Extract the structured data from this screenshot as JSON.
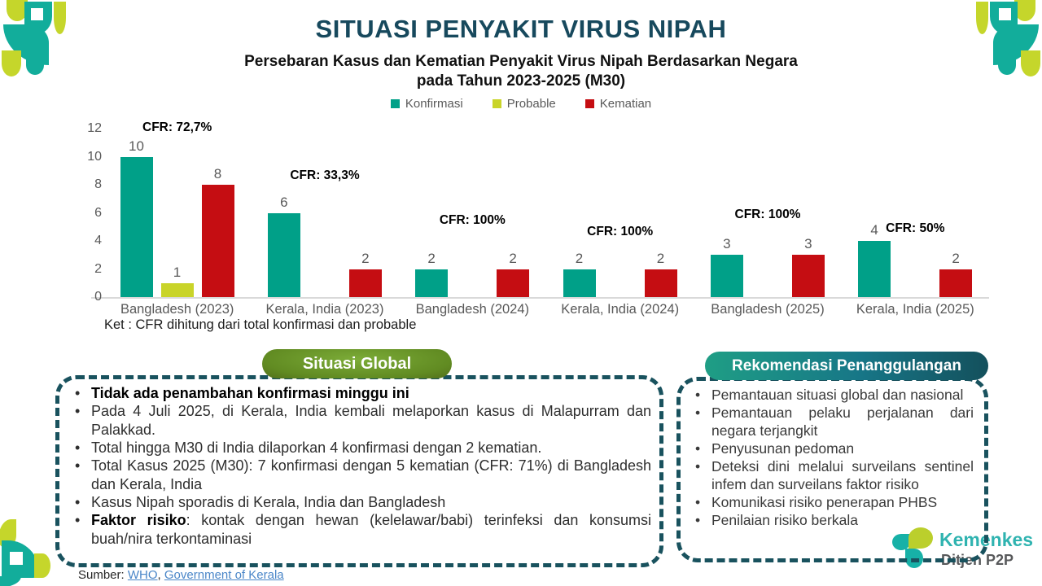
{
  "header": {
    "title": "SITUASI PENYAKIT VIRUS NIPAH",
    "subtitle": "Persebaran Kasus dan Kematian Penyakit Virus Nipah Berdasarkan Negara\npada Tahun 2023-2025 (M30)"
  },
  "chart_data": {
    "type": "bar",
    "title": "Persebaran Kasus dan Kematian Penyakit Virus Nipah Berdasarkan Negara pada Tahun 2023-2025 (M30)",
    "categories": [
      "Bangladesh (2023)",
      "Kerala, India (2023)",
      "Bangladesh (2024)",
      "Kerala, India (2024)",
      "Bangladesh (2025)",
      "Kerala, India (2025)"
    ],
    "series": [
      {
        "name": "Konfirmasi",
        "color": "#00A088",
        "values": [
          10,
          6,
          2,
          2,
          3,
          4
        ]
      },
      {
        "name": "Probable",
        "color": "#C9D429",
        "values": [
          1,
          0,
          0,
          0,
          0,
          0
        ]
      },
      {
        "name": "Kematian",
        "color": "#C50D12",
        "values": [
          8,
          2,
          2,
          2,
          3,
          2
        ]
      }
    ],
    "cfr_labels": [
      "CFR: 72,7%",
      "CFR: 33,3%",
      "CFR: 100%",
      "CFR: 100%",
      "CFR: 100%",
      "CFR: 50%"
    ],
    "cfr_values": [
      72.7,
      33.3,
      100,
      100,
      100,
      50
    ],
    "ylim": [
      0,
      12
    ],
    "yticks": [
      0,
      2,
      4,
      6,
      8,
      10,
      12
    ],
    "grid": false,
    "legend_position": "top",
    "note": "Ket : CFR dihitung dari total konfirmasi dan probable"
  },
  "global_box": {
    "header": "Situasi Global",
    "bullets": [
      {
        "bold": "Tidak ada penambahan konfirmasi minggu ini",
        "text": ""
      },
      {
        "bold": "",
        "text": "Pada 4 Juli 2025, di Kerala, India kembali melaporkan kasus di Malapurram dan Palakkad."
      },
      {
        "bold": "",
        "text": "Total hingga M30 di India dilaporkan 4 konfirmasi dengan 2 kematian."
      },
      {
        "bold": "",
        "text": "Total Kasus 2025 (M30): 7 konfirmasi dengan 5 kematian (CFR: 71%) di Bangladesh dan Kerala, India"
      },
      {
        "bold": "",
        "text": "Kasus Nipah sporadis di Kerala, India dan Bangladesh"
      },
      {
        "bold": "Faktor risiko",
        "text": ": kontak dengan hewan (kelelawar/babi) terinfeksi dan konsumsi buah/nira terkontaminasi"
      }
    ]
  },
  "recommendation_box": {
    "header": "Rekomendasi Penanggulangan",
    "bullets": [
      {
        "bold": "",
        "text": "Pemantauan situasi global dan nasional"
      },
      {
        "bold": "",
        "text": "Pemantauan pelaku perjalanan dari negara terjangkit"
      },
      {
        "bold": "",
        "text": "Penyusunan pedoman"
      },
      {
        "bold": "",
        "text": "Deteksi dini melalui surveilans sentinel infem dan surveilans faktor risiko"
      },
      {
        "bold": "",
        "text": "Komunikasi risiko penerapan PHBS"
      },
      {
        "bold": "",
        "text": "Penilaian risiko berkala"
      }
    ]
  },
  "footer": {
    "source_label": "Sumber:",
    "source_links": [
      "WHO",
      "Government of Kerala"
    ]
  },
  "logo": {
    "brand": "Kemenkes",
    "unit": "Ditjen P2P"
  },
  "colors": {
    "title": "#17495D",
    "konfirmasi": "#00A088",
    "probable": "#C9D429",
    "kematian": "#C50D12",
    "box_border": "#19525E",
    "pill_global": "#618B22",
    "pill_recommendation": "#14505C",
    "link": "#4A86C8",
    "ornament_teal": "#12AD9B",
    "ornament_lime": "#C5D62B"
  }
}
